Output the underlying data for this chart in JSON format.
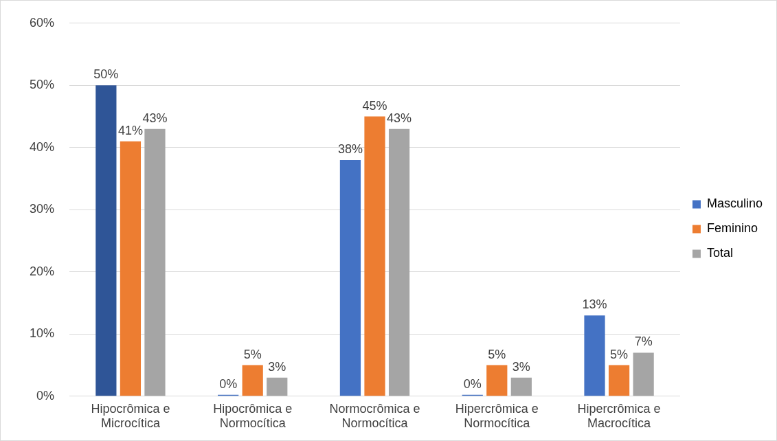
{
  "chart_data": {
    "type": "bar",
    "categories": [
      "Hipocrômica e Microcítica",
      "Hipocrômica e Normocítica",
      "Normocrômica e Normocítica",
      "Hipercrômica e Normocítica",
      "Hipercrômica e Macrocítica"
    ],
    "series": [
      {
        "name": "Masculino",
        "color": "#4472c4",
        "colors": [
          "#2f5597",
          "#4472c4",
          "#4472c4",
          "#4472c4",
          "#4472c4"
        ],
        "values": [
          50,
          0,
          38,
          0,
          13
        ],
        "value_labels": [
          "50%",
          "0%",
          "38%",
          "0%",
          "13%"
        ]
      },
      {
        "name": "Feminino",
        "color": "#ed7d31",
        "values": [
          41,
          5,
          45,
          5,
          5
        ],
        "value_labels": [
          "41%",
          "5%",
          "45%",
          "5%",
          "5%"
        ]
      },
      {
        "name": "Total",
        "color": "#a5a5a5",
        "values": [
          43,
          3,
          43,
          3,
          7
        ],
        "value_labels": [
          "43%",
          "3%",
          "43%",
          "3%",
          "7%"
        ]
      }
    ],
    "ylim": [
      0,
      60
    ],
    "yticks": [
      {
        "value": 0,
        "label": "0%"
      },
      {
        "value": 10,
        "label": "10%"
      },
      {
        "value": 20,
        "label": "20%"
      },
      {
        "value": 30,
        "label": "30%"
      },
      {
        "value": 40,
        "label": "40%"
      },
      {
        "value": 50,
        "label": "50%"
      },
      {
        "value": 60,
        "label": "60%"
      }
    ],
    "grid": "y",
    "legend": "right"
  }
}
